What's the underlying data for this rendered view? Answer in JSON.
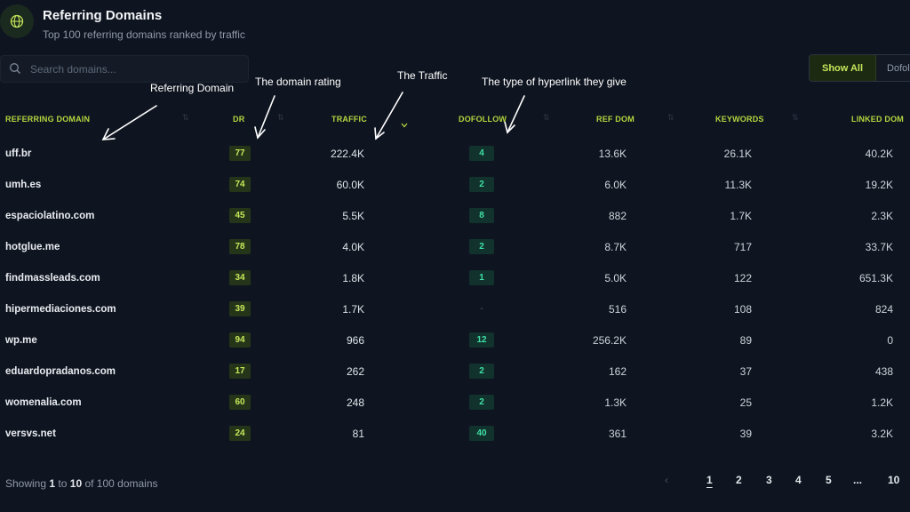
{
  "header": {
    "title": "Referring Domains",
    "subtitle": "Top 100 referring domains ranked by traffic"
  },
  "search": {
    "placeholder": "Search domains..."
  },
  "filter": {
    "show_all": "Show All",
    "dofollow": "Dofoll"
  },
  "annotations": {
    "referring_domain": "Referring Domain",
    "domain_rating": "The domain rating",
    "traffic": "The Traffic",
    "link_type": "The type of hyperlink they give"
  },
  "columns": [
    "REFERRING DOMAIN",
    "DR",
    "TRAFFIC",
    "DOFOLLOW",
    "REF DOM",
    "KEYWORDS",
    "LINKED DOM"
  ],
  "rows": [
    {
      "domain": "uff.br",
      "dr": "77",
      "traffic": "222.4K",
      "dofollow": "4",
      "ref_dom": "13.6K",
      "keywords": "26.1K",
      "linked_dom": "40.2K"
    },
    {
      "domain": "umh.es",
      "dr": "74",
      "traffic": "60.0K",
      "dofollow": "2",
      "ref_dom": "6.0K",
      "keywords": "11.3K",
      "linked_dom": "19.2K"
    },
    {
      "domain": "espaciolatino.com",
      "dr": "45",
      "traffic": "5.5K",
      "dofollow": "8",
      "ref_dom": "882",
      "keywords": "1.7K",
      "linked_dom": "2.3K"
    },
    {
      "domain": "hotglue.me",
      "dr": "78",
      "traffic": "4.0K",
      "dofollow": "2",
      "ref_dom": "8.7K",
      "keywords": "717",
      "linked_dom": "33.7K"
    },
    {
      "domain": "findmassleads.com",
      "dr": "34",
      "traffic": "1.8K",
      "dofollow": "1",
      "ref_dom": "5.0K",
      "keywords": "122",
      "linked_dom": "651.3K"
    },
    {
      "domain": "hipermediaciones.com",
      "dr": "39",
      "traffic": "1.7K",
      "dofollow": "-",
      "ref_dom": "516",
      "keywords": "108",
      "linked_dom": "824"
    },
    {
      "domain": "wp.me",
      "dr": "94",
      "traffic": "966",
      "dofollow": "12",
      "ref_dom": "256.2K",
      "keywords": "89",
      "linked_dom": "0"
    },
    {
      "domain": "eduardopradanos.com",
      "dr": "17",
      "traffic": "262",
      "dofollow": "2",
      "ref_dom": "162",
      "keywords": "37",
      "linked_dom": "438"
    },
    {
      "domain": "womenalia.com",
      "dr": "60",
      "traffic": "248",
      "dofollow": "2",
      "ref_dom": "1.3K",
      "keywords": "25",
      "linked_dom": "1.2K"
    },
    {
      "domain": "versvs.net",
      "dr": "24",
      "traffic": "81",
      "dofollow": "40",
      "ref_dom": "361",
      "keywords": "39",
      "linked_dom": "3.2K"
    }
  ],
  "footer": {
    "showing_prefix": "Showing",
    "range_start": "1",
    "range_mid": "to",
    "range_end": "10",
    "showing_suffix": "of 100 domains",
    "prev": "‹",
    "pages": [
      "1",
      "2",
      "3",
      "4",
      "5",
      "...",
      "10"
    ],
    "current_page": "1"
  },
  "colors": {
    "background": "#0f1520",
    "accent_lime": "#c4e65a",
    "dofollow_teal": "#3fe0a5"
  }
}
